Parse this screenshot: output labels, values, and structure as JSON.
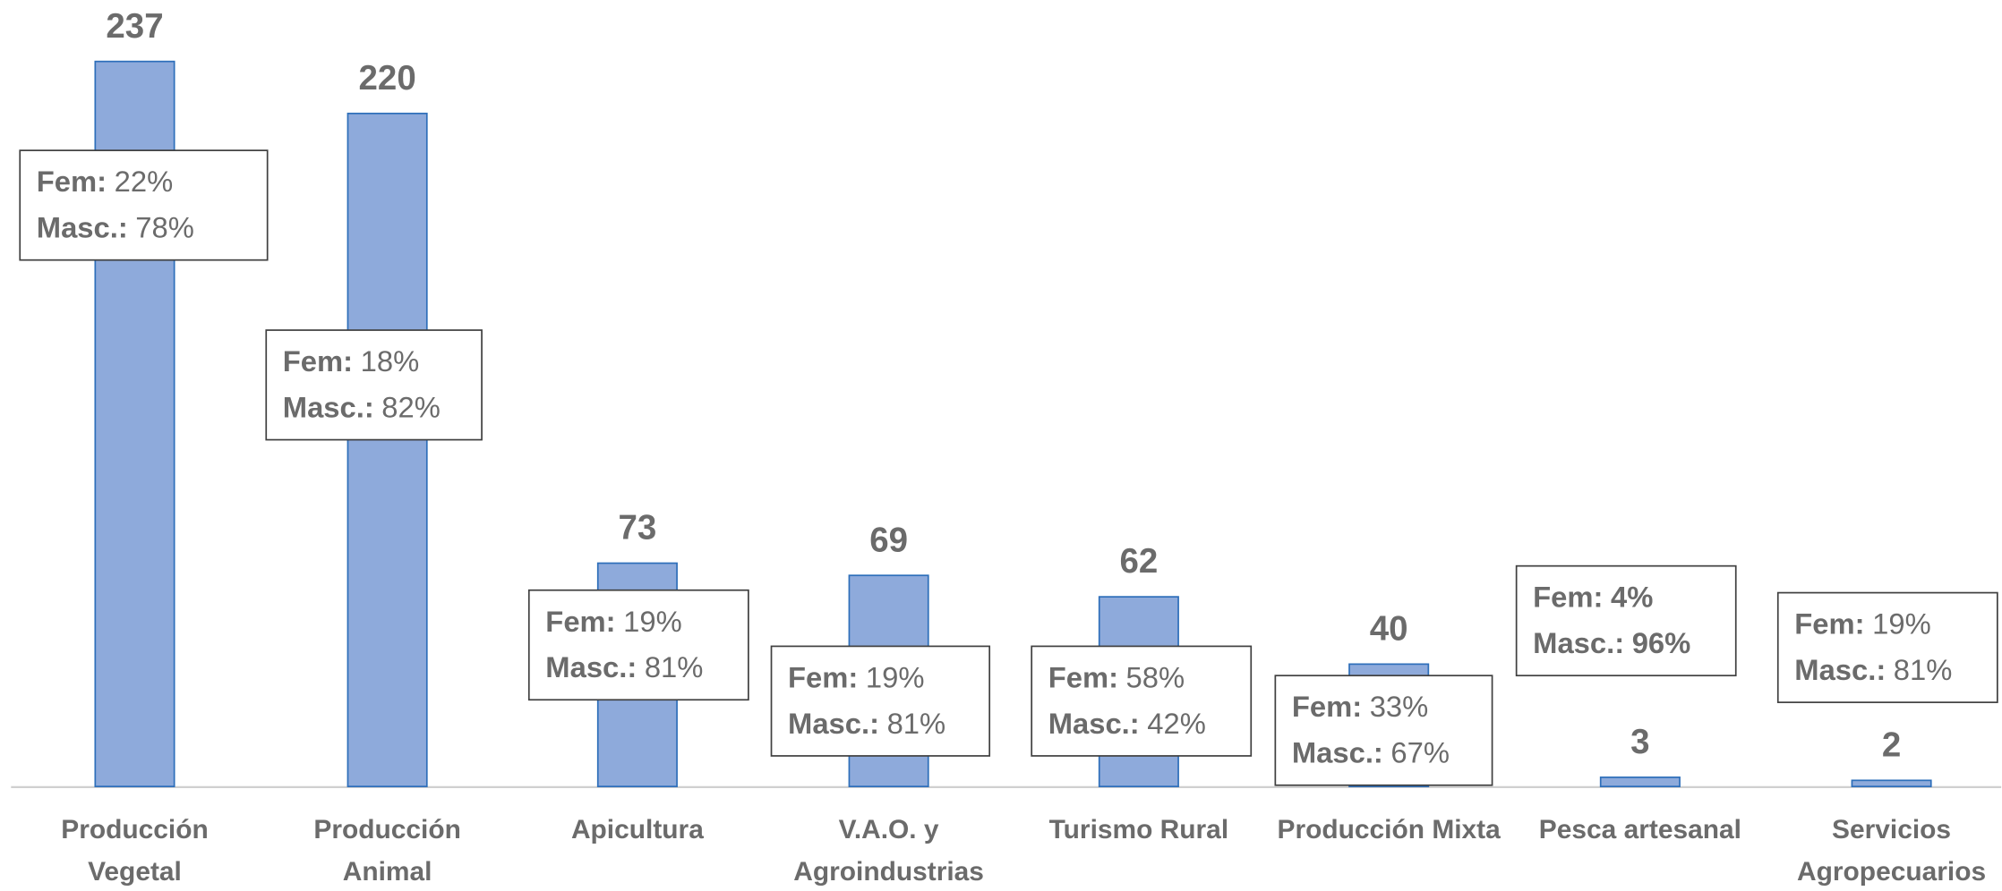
{
  "chart_data": {
    "type": "bar",
    "categories": [
      "Producción\nVegetal",
      "Producción\nAnimal",
      "Apicultura",
      "V.A.O. y\nAgroindustrias",
      "Turismo Rural",
      "Producción Mixta",
      "Pesca artesanal",
      "Servicios\nAgropecuarios"
    ],
    "values": [
      237,
      220,
      73,
      69,
      62,
      40,
      3,
      2
    ],
    "color": "#8eaadb",
    "ylim": [
      0,
      250
    ],
    "annotations": [
      {
        "fem_label": "Fem:",
        "fem": "22%",
        "masc_label": "Masc.:",
        "masc": "78%"
      },
      {
        "fem_label": "Fem:",
        "fem": "18%",
        "masc_label": "Masc.:",
        "masc": "82%"
      },
      {
        "fem_label": "Fem:",
        "fem": "19%",
        "masc_label": "Masc.:",
        "masc": "81%"
      },
      {
        "fem_label": "Fem:",
        "fem": "19%",
        "masc_label": "Masc.:",
        "masc": "81%"
      },
      {
        "fem_label": "Fem:",
        "fem": "58%",
        "masc_label": "Masc.:",
        "masc": "42%"
      },
      {
        "fem_label": "Fem:",
        "fem": "33%",
        "masc_label": "Masc.:",
        "masc": "67%"
      },
      {
        "fem_label": "Fem:",
        "fem": "4%",
        "masc_label": "Masc.:",
        "masc": "96%",
        "bold_values": true
      },
      {
        "fem_label": "Fem:",
        "fem": "19%",
        "masc_label": "Masc.:",
        "masc": "81%"
      }
    ]
  }
}
